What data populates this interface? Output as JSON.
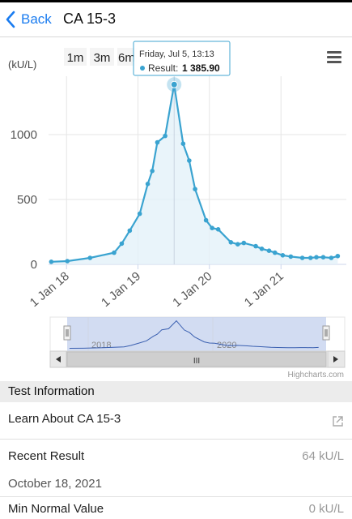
{
  "header": {
    "back_label": "Back",
    "title": "CA 15-3"
  },
  "range_selector": {
    "buttons": [
      "1m",
      "3m",
      "6m"
    ]
  },
  "tooltip": {
    "date": "Friday, Jul 5, 13:13",
    "series_label": "Result:",
    "value": "1 385.90"
  },
  "credits": "Highcharts.com",
  "navigator": {
    "labels": [
      "2018",
      "2020"
    ],
    "scroll_handle": "III"
  },
  "chart_data": {
    "type": "area",
    "yunit_label": "(kU/L)",
    "ylim": [
      0,
      1450
    ],
    "yticks": [
      {
        "v": 0,
        "label": "0"
      },
      {
        "v": 500,
        "label": "500"
      },
      {
        "v": 1000,
        "label": "1000"
      }
    ],
    "xlim": [
      "2017-10-01",
      "2021-12-01"
    ],
    "xticks": [
      {
        "date": "2018-01-01",
        "label": "1 Jan 18"
      },
      {
        "date": "2019-01-01",
        "label": "1 Jan 19"
      },
      {
        "date": "2020-01-01",
        "label": "1 Jan 20"
      },
      {
        "date": "2021-01-01",
        "label": "1 Jan 21"
      }
    ],
    "grid": true,
    "series": [
      {
        "color": "#3aa3d0",
        "points": [
          {
            "x": "2017-10-15",
            "y": 20
          },
          {
            "x": "2018-01-05",
            "y": 25
          },
          {
            "x": "2018-05-01",
            "y": 50
          },
          {
            "x": "2018-09-01",
            "y": 90
          },
          {
            "x": "2018-10-10",
            "y": 160
          },
          {
            "x": "2018-11-20",
            "y": 260
          },
          {
            "x": "2019-01-10",
            "y": 390
          },
          {
            "x": "2019-02-20",
            "y": 620
          },
          {
            "x": "2019-03-15",
            "y": 720
          },
          {
            "x": "2019-04-10",
            "y": 940
          },
          {
            "x": "2019-05-20",
            "y": 990
          },
          {
            "x": "2019-07-05",
            "y": 1385.9
          },
          {
            "x": "2019-08-20",
            "y": 930
          },
          {
            "x": "2019-09-20",
            "y": 800
          },
          {
            "x": "2019-10-20",
            "y": 580
          },
          {
            "x": "2019-12-15",
            "y": 340
          },
          {
            "x": "2020-01-15",
            "y": 280
          },
          {
            "x": "2020-02-15",
            "y": 270
          },
          {
            "x": "2020-04-20",
            "y": 170
          },
          {
            "x": "2020-05-25",
            "y": 155
          },
          {
            "x": "2020-06-25",
            "y": 165
          },
          {
            "x": "2020-08-25",
            "y": 140
          },
          {
            "x": "2020-09-25",
            "y": 120
          },
          {
            "x": "2020-11-01",
            "y": 105
          },
          {
            "x": "2020-12-01",
            "y": 90
          },
          {
            "x": "2021-01-10",
            "y": 70
          },
          {
            "x": "2021-02-20",
            "y": 60
          },
          {
            "x": "2021-04-20",
            "y": 50
          },
          {
            "x": "2021-06-01",
            "y": 50
          },
          {
            "x": "2021-07-01",
            "y": 55
          },
          {
            "x": "2021-08-05",
            "y": 55
          },
          {
            "x": "2021-09-15",
            "y": 50
          },
          {
            "x": "2021-10-18",
            "y": 64
          }
        ]
      }
    ]
  },
  "sections": {
    "test_info_title": "Test Information"
  },
  "rows": {
    "learn_label": "Learn About CA 15-3",
    "recent_label": "Recent Result",
    "recent_value": "64 kU/L",
    "recent_date": "October 18, 2021",
    "min_label": "Min Normal Value",
    "min_value": "0 kU/L"
  },
  "colors": {
    "accent": "#1a7cf0",
    "series": "#3aa3d0",
    "fill": "#e3f1f9"
  },
  "icons": {
    "back": "chevron-left-icon",
    "menu": "hamburger-menu-icon",
    "external": "external-link-icon"
  }
}
